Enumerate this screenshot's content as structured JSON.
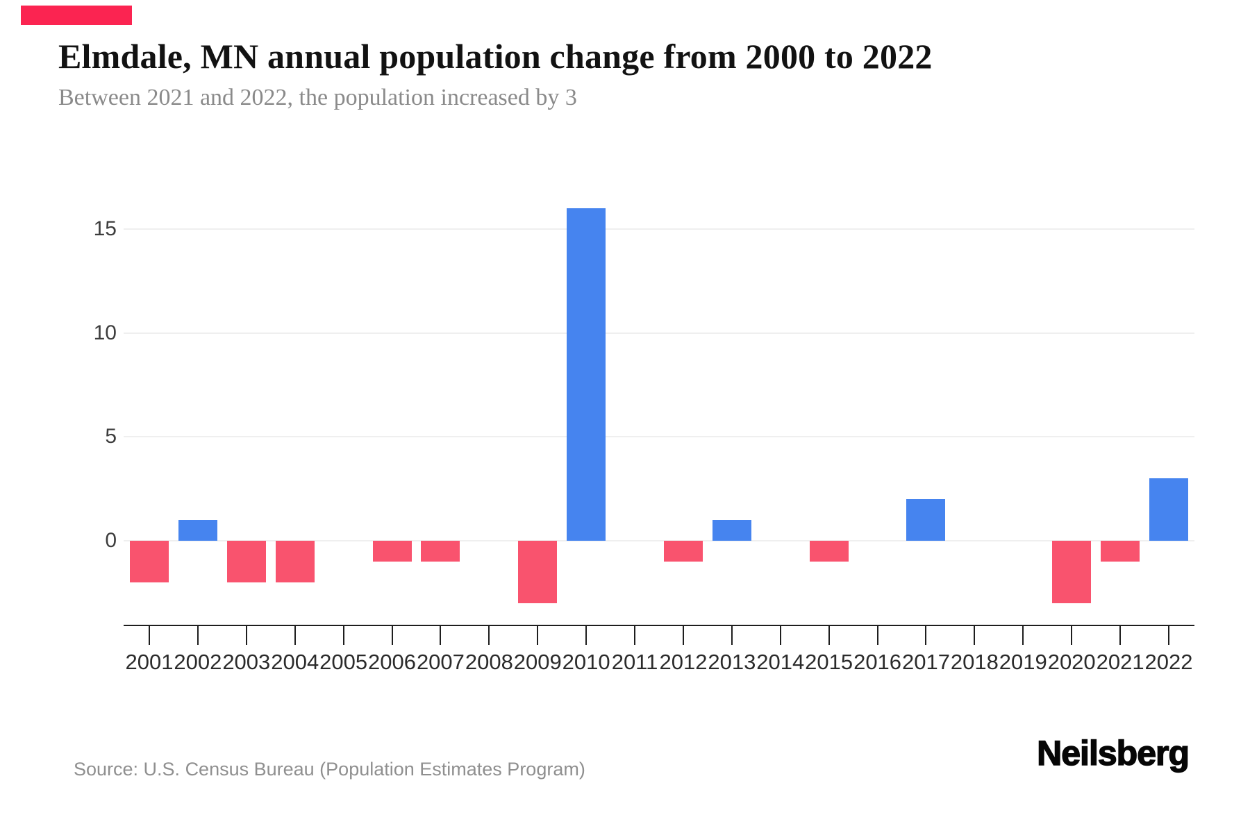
{
  "brand": {
    "logo_text": "Neilsberg",
    "accent_color": "#fb2451"
  },
  "header": {
    "title": "Elmdale, MN annual population change from 2000 to 2022",
    "subtitle": "Between 2021 and 2022, the population increased by 3"
  },
  "footer": {
    "source": "Source: U.S. Census Bureau (Population Estimates Program)"
  },
  "chart_data": {
    "type": "bar",
    "title": "Elmdale, MN annual population change from 2000 to 2022",
    "subtitle": "Between 2021 and 2022, the population increased by 3",
    "xlabel": "",
    "ylabel": "",
    "categories": [
      "2001",
      "2002",
      "2003",
      "2004",
      "2005",
      "2006",
      "2007",
      "2008",
      "2009",
      "2010",
      "2011",
      "2012",
      "2013",
      "2014",
      "2015",
      "2016",
      "2017",
      "2018",
      "2019",
      "2020",
      "2021",
      "2022"
    ],
    "values": [
      -2,
      1,
      -2,
      -2,
      0,
      -1,
      -1,
      0,
      -3,
      16,
      0,
      -1,
      1,
      0,
      -1,
      0,
      2,
      0,
      0,
      -3,
      -1,
      3
    ],
    "yticks": [
      0,
      5,
      10,
      15
    ],
    "ylim": [
      -4,
      17
    ],
    "grid": true,
    "legend": false,
    "colors": {
      "positive": "#4684EF",
      "negative": "#F9536E",
      "gridline": "#EFEFEF",
      "axis": "#1E1E1E"
    }
  }
}
